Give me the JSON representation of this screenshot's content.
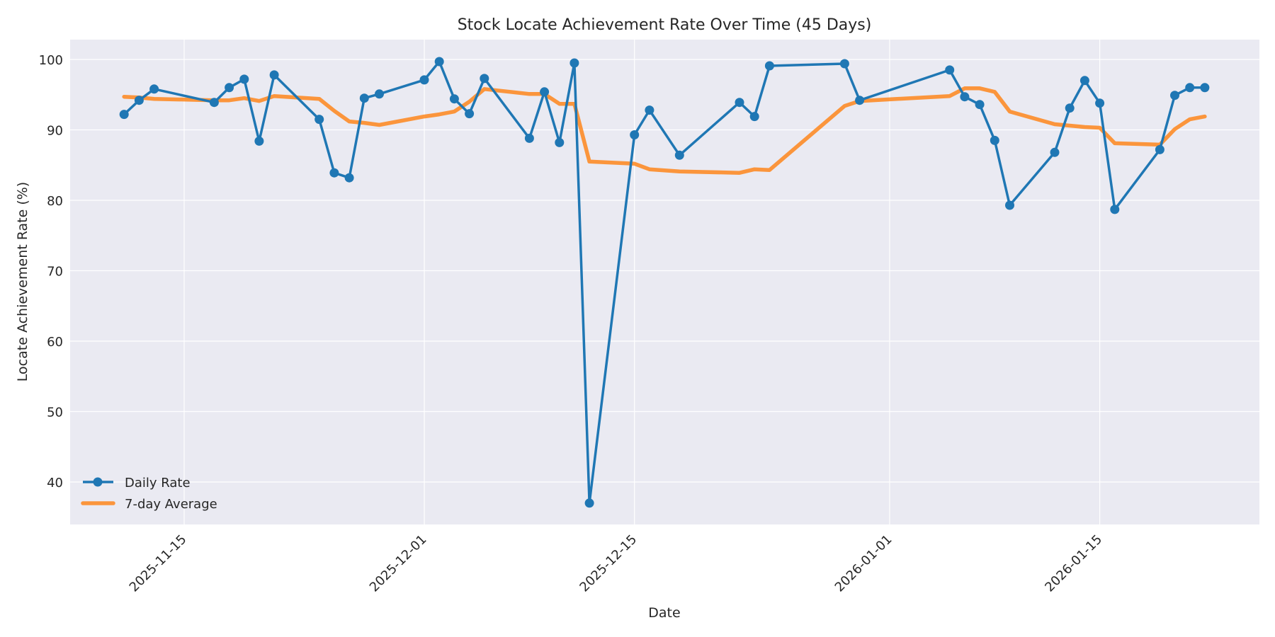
{
  "chart_data": {
    "type": "line",
    "title": "Stock Locate Achievement Rate Over Time (45 Days)",
    "xlabel": "Date",
    "ylabel": "Locate Achievement Rate (%)",
    "ylim": [
      34,
      103
    ],
    "yticks": [
      40,
      50,
      60,
      70,
      80,
      90,
      100
    ],
    "xticks": [
      "2025-11-15",
      "2025-12-01",
      "2025-12-15",
      "2026-01-01",
      "2026-01-15"
    ],
    "grid": true,
    "legend_position": "lower left",
    "x": [
      "2025-11-11",
      "2025-11-12",
      "2025-11-13",
      "2025-11-17",
      "2025-11-18",
      "2025-11-19",
      "2025-11-20",
      "2025-11-21",
      "2025-11-24",
      "2025-11-25",
      "2025-11-26",
      "2025-11-27",
      "2025-11-28",
      "2025-12-01",
      "2025-12-02",
      "2025-12-03",
      "2025-12-04",
      "2025-12-05",
      "2025-12-08",
      "2025-12-09",
      "2025-12-10",
      "2025-12-11",
      "2025-12-12",
      "2025-12-15",
      "2025-12-16",
      "2025-12-18",
      "2025-12-22",
      "2025-12-23",
      "2025-12-24",
      "2025-12-29",
      "2025-12-30",
      "2026-01-05",
      "2026-01-06",
      "2026-01-07",
      "2026-01-08",
      "2026-01-09",
      "2026-01-12",
      "2026-01-13",
      "2026-01-14",
      "2026-01-15",
      "2026-01-16",
      "2026-01-19",
      "2026-01-20",
      "2026-01-21",
      "2026-01-22"
    ],
    "series": [
      {
        "name": "Daily Rate",
        "color": "#1f77b4",
        "marker": "circle",
        "values": [
          92.2,
          94.2,
          95.8,
          93.9,
          96.0,
          97.2,
          88.4,
          97.8,
          91.5,
          83.9,
          83.2,
          94.5,
          95.1,
          97.1,
          99.7,
          94.4,
          92.3,
          97.3,
          88.8,
          95.4,
          88.2,
          99.5,
          37.0,
          89.3,
          92.8,
          86.4,
          93.9,
          91.9,
          99.1,
          99.4,
          94.2,
          98.5,
          94.7,
          93.6,
          88.5,
          79.3,
          86.8,
          93.1,
          97.0,
          93.8,
          78.7,
          87.2,
          94.9,
          96.0,
          96.0
        ]
      },
      {
        "name": "7-day Average",
        "color": "#ff7f0e",
        "marker": "none",
        "values": [
          94.7,
          94.6,
          94.4,
          94.2,
          94.2,
          94.5,
          94.1,
          94.8,
          94.4,
          92.7,
          91.2,
          91.0,
          90.7,
          91.9,
          92.2,
          92.6,
          94.0,
          95.8,
          95.1,
          95.1,
          93.7,
          93.7,
          85.5,
          85.2,
          84.4,
          84.1,
          83.9,
          84.4,
          84.3,
          93.4,
          94.1,
          94.8,
          95.9,
          95.9,
          95.4,
          92.6,
          90.8,
          90.6,
          90.4,
          90.3,
          88.1,
          87.9,
          90.1,
          91.5,
          91.9
        ]
      }
    ]
  },
  "legend": {
    "items": [
      {
        "label": "Daily Rate"
      },
      {
        "label": "7-day Average"
      }
    ]
  }
}
